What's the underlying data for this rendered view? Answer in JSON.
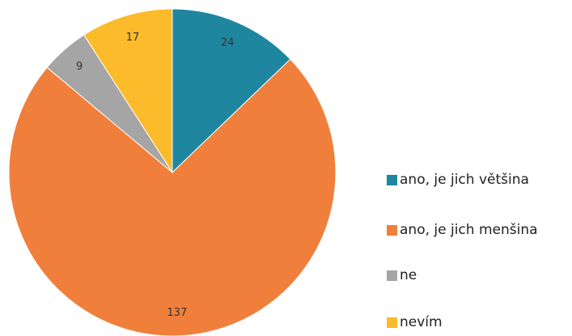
{
  "chart_data": {
    "type": "pie",
    "categories": [
      "ano, je jich většina",
      "ano, je jich menšina",
      "ne",
      "nevím"
    ],
    "values": [
      24,
      137,
      9,
      17
    ],
    "colors": [
      "#1f86a0",
      "#f07f3c",
      "#a5a5a5",
      "#fbbb2a"
    ],
    "legend": "right"
  }
}
